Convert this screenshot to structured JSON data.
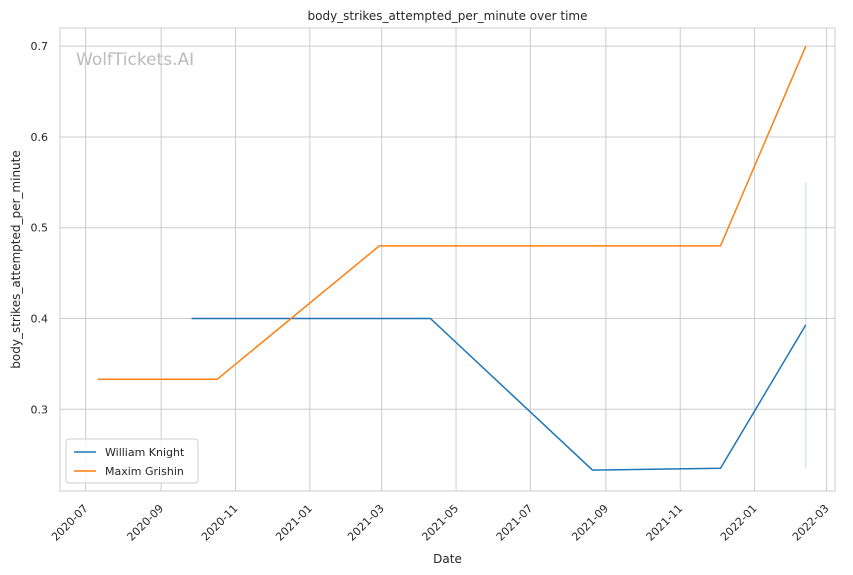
{
  "chart_data": {
    "type": "line",
    "title": "body_strikes_attempted_per_minute over time",
    "xlabel": "Date",
    "ylabel": "body_strikes_attempted_per_minute",
    "watermark": "WolfTickets.AI",
    "grid": true,
    "legend_position": "bottom-left",
    "x_range": [
      "2020-06-10",
      "2022-03-08"
    ],
    "ylim": [
      0.21,
      0.72
    ],
    "x_ticks": [
      "2020-07",
      "2020-09",
      "2020-11",
      "2021-01",
      "2021-03",
      "2021-05",
      "2021-07",
      "2021-09",
      "2021-11",
      "2022-01",
      "2022-03"
    ],
    "x_tick_dates": [
      "2020-07-01",
      "2020-09-01",
      "2020-11-01",
      "2021-01-01",
      "2021-03-01",
      "2021-05-01",
      "2021-07-01",
      "2021-09-01",
      "2021-11-01",
      "2022-01-01",
      "2022-03-01"
    ],
    "y_ticks": [
      0.3,
      0.4,
      0.5,
      0.6,
      0.7
    ],
    "y_tick_labels": [
      "0.3",
      "0.4",
      "0.5",
      "0.6",
      "0.7"
    ],
    "series": [
      {
        "name": "William Knight",
        "color": "#1f77b4",
        "x": [
          "2020-09-26",
          "2021-04-10",
          "2021-08-21",
          "2021-12-04",
          "2022-02-12"
        ],
        "y": [
          0.4,
          0.4,
          0.233,
          0.235,
          0.393
        ],
        "band": {
          "x": "2022-02-12",
          "low": 0.235,
          "high": 0.55
        }
      },
      {
        "name": "Maxim Grishin",
        "color": "#ff7f0e",
        "x": [
          "2020-07-11",
          "2020-10-17",
          "2021-02-27",
          "2021-12-04",
          "2022-02-12"
        ],
        "y": [
          0.333,
          0.333,
          0.48,
          0.48,
          0.7
        ]
      }
    ]
  }
}
